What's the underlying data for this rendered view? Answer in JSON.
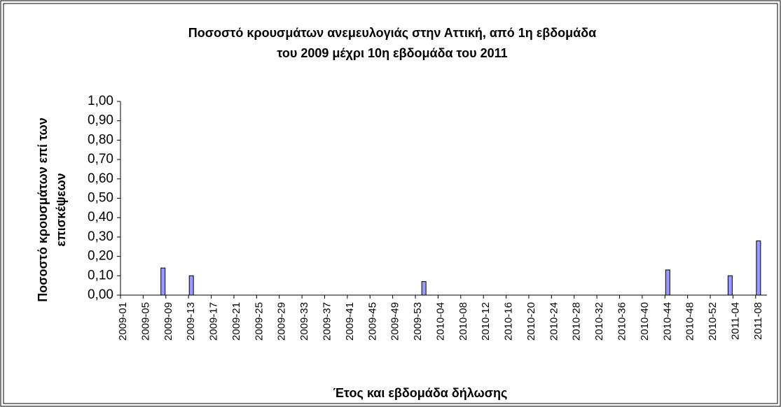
{
  "chart_data": {
    "type": "bar",
    "title": [
      "Ποσοστό κρουσμάτων ανεμευλογιάς στην Αττική, από 1η εβδομάδα",
      "του 2009 μέχρι 10η εβδομάδα του 2011"
    ],
    "y_label": [
      "Ποσοστό κρουσμάτων επί των",
      "επισκέψεων"
    ],
    "x_label": "Έτος και εβδομάδα δήλωσης",
    "categories": [
      "2009-01",
      null,
      null,
      null,
      "2009-05",
      null,
      null,
      null,
      "2009-09",
      null,
      null,
      null,
      "2009-13",
      null,
      null,
      null,
      "2009-17",
      null,
      null,
      null,
      "2009-21",
      null,
      null,
      null,
      "2009-25",
      null,
      null,
      null,
      "2009-29",
      null,
      null,
      null,
      "2009-33",
      null,
      null,
      null,
      "2009-37",
      null,
      null,
      null,
      "2009-41",
      null,
      null,
      null,
      "2009-45",
      null,
      null,
      null,
      "2009-49",
      null,
      null,
      null,
      "2009-53",
      null,
      null,
      null,
      "2010-04",
      null,
      null,
      null,
      "2010-08",
      null,
      null,
      null,
      "2010-12",
      null,
      null,
      null,
      "2010-16",
      null,
      null,
      null,
      "2010-20",
      null,
      null,
      null,
      "2010-24",
      null,
      null,
      null,
      "2010-28",
      null,
      null,
      null,
      "2010-32",
      null,
      null,
      null,
      "2010-36",
      null,
      null,
      null,
      "2010-40",
      null,
      null,
      null,
      "2010-44",
      null,
      null,
      null,
      "2010-48",
      null,
      null,
      null,
      "2010-52",
      null,
      null,
      null,
      "2011-04",
      null,
      null,
      null,
      "2011-08",
      null
    ],
    "values": [
      0,
      0,
      0,
      0,
      0,
      0,
      0,
      0.14,
      0,
      0,
      0,
      0,
      0.1,
      0,
      0,
      0,
      0,
      0,
      0,
      0,
      0,
      0,
      0,
      0,
      0,
      0,
      0,
      0,
      0,
      0,
      0,
      0,
      0,
      0,
      0,
      0,
      0,
      0,
      0,
      0,
      0,
      0,
      0,
      0,
      0,
      0,
      0,
      0,
      0,
      0,
      0,
      0,
      0,
      0.07,
      0,
      0,
      0,
      0,
      0,
      0,
      0,
      0,
      0,
      0,
      0,
      0,
      0,
      0,
      0,
      0,
      0,
      0,
      0,
      0,
      0,
      0,
      0,
      0,
      0,
      0,
      0,
      0,
      0,
      0,
      0,
      0,
      0,
      0,
      0,
      0,
      0,
      0,
      0,
      0,
      0,
      0,
      0.13,
      0,
      0,
      0,
      0,
      0,
      0,
      0,
      0,
      0,
      0,
      0.1,
      0,
      0,
      0,
      0,
      0.28,
      0
    ],
    "color": "#9999ff",
    "ylim": [
      0,
      1
    ],
    "yticks": [
      {
        "value": 0,
        "label": "0,00"
      },
      {
        "value": 0.1,
        "label": "0,10"
      },
      {
        "value": 0.2,
        "label": "0,20"
      },
      {
        "value": 0.3,
        "label": "0,30"
      },
      {
        "value": 0.4,
        "label": "0,40"
      },
      {
        "value": 0.5,
        "label": "0,50"
      },
      {
        "value": 0.6,
        "label": "0,60"
      },
      {
        "value": 0.7,
        "label": "0,70"
      },
      {
        "value": 0.8,
        "label": "0,80"
      },
      {
        "value": 0.9,
        "label": "0,90"
      },
      {
        "value": 1,
        "label": "1,00"
      }
    ],
    "grid": false
  }
}
